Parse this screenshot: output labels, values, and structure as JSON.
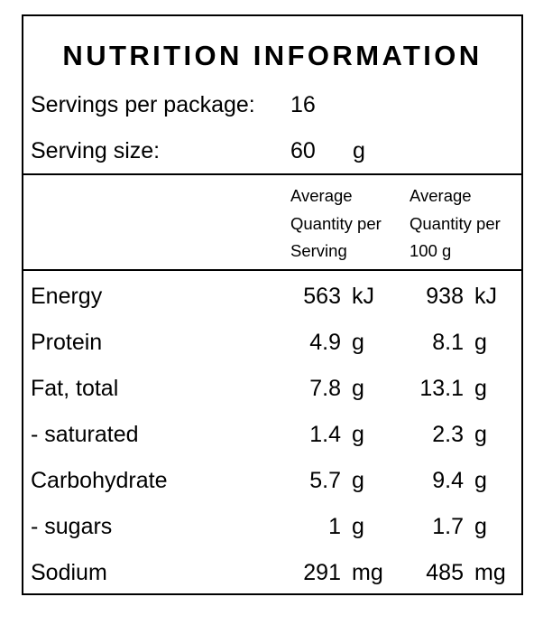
{
  "panel": {
    "title": "NUTRITION INFORMATION",
    "servings": {
      "label": "Servings per package:",
      "value": "16"
    },
    "serving_size": {
      "label": "Serving size:",
      "value": "60",
      "unit": "g"
    },
    "columns": {
      "per_serving": [
        "Average",
        "Quantity per",
        "Serving"
      ],
      "per_100g": [
        "Average",
        "Quantity per",
        "100 g"
      ]
    },
    "rows": [
      {
        "name": "Energy",
        "per_serving": "563",
        "unit_serving": "kJ",
        "per_100g": "938",
        "unit_100g": "kJ"
      },
      {
        "name": "Protein",
        "per_serving": "4.9",
        "unit_serving": "g",
        "per_100g": "8.1",
        "unit_100g": "g"
      },
      {
        "name": "Fat, total",
        "per_serving": "7.8",
        "unit_serving": "g",
        "per_100g": "13.1",
        "unit_100g": "g"
      },
      {
        "name": "- saturated",
        "per_serving": "1.4",
        "unit_serving": "g",
        "per_100g": "2.3",
        "unit_100g": "g"
      },
      {
        "name": "Carbohydrate",
        "per_serving": "5.7",
        "unit_serving": "g",
        "per_100g": "9.4",
        "unit_100g": "g"
      },
      {
        "name": "- sugars",
        "per_serving": "1",
        "unit_serving": "g",
        "per_100g": "1.7",
        "unit_100g": "g"
      },
      {
        "name": "Sodium",
        "per_serving": "291",
        "unit_serving": "mg",
        "per_100g": "485",
        "unit_100g": "mg"
      }
    ]
  }
}
